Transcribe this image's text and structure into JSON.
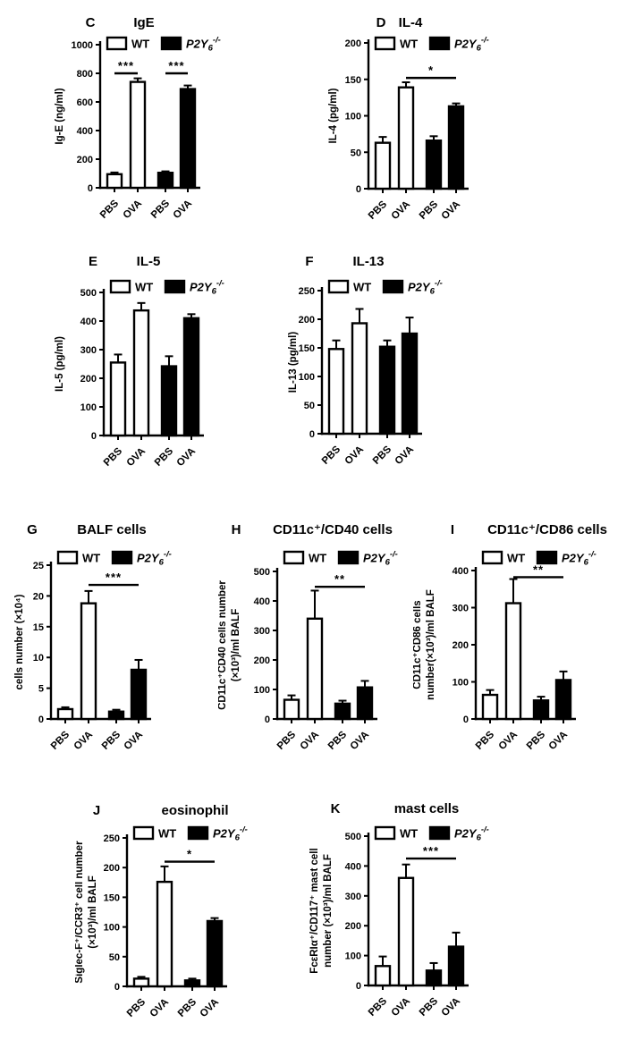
{
  "figure": {
    "background": "#ffffff",
    "ink_color": "#000000",
    "legend": {
      "wt": {
        "label": "WT",
        "swatch_fill": "#ffffff"
      },
      "ko": {
        "label": "P2Y6-/-",
        "base": "P2Y",
        "sub": "6",
        "sup": "-/-",
        "swatch_fill": "#000000"
      }
    }
  },
  "chart_data": [
    {
      "type": "bar",
      "panel_letter": "C",
      "title": "IgE",
      "ylabel_lines": [
        "Ig-E (ng/ml)"
      ],
      "ylim": [
        0,
        1000
      ],
      "ystep": 200,
      "categories": [
        "PBS",
        "OVA",
        "PBS",
        "OVA"
      ],
      "series": [
        {
          "name": "WT",
          "fill": "#ffffff",
          "values": [
            95,
            740
          ],
          "errors": [
            12,
            25
          ]
        },
        {
          "name": "P2Y6-/-",
          "fill": "#000000",
          "values": [
            105,
            690
          ],
          "errors": [
            10,
            25
          ]
        }
      ],
      "significance": [
        {
          "bars": [
            0,
            1
          ],
          "y": 800,
          "label": "***"
        },
        {
          "bars": [
            2,
            3
          ],
          "y": 800,
          "label": "***"
        }
      ]
    },
    {
      "type": "bar",
      "panel_letter": "D",
      "title": "IL-4",
      "ylabel_lines": [
        "IL-4 (pg/ml)"
      ],
      "ylim": [
        0,
        200
      ],
      "ystep": 50,
      "categories": [
        "PBS",
        "OVA",
        "PBS",
        "OVA"
      ],
      "series": [
        {
          "name": "WT",
          "fill": "#ffffff",
          "values": [
            63,
            139
          ],
          "errors": [
            8,
            7
          ]
        },
        {
          "name": "P2Y6-/-",
          "fill": "#000000",
          "values": [
            66,
            113
          ],
          "errors": [
            6,
            4
          ]
        }
      ],
      "significance": [
        {
          "bars": [
            1,
            3
          ],
          "y": 152,
          "label": "*"
        }
      ]
    },
    {
      "type": "bar",
      "panel_letter": "E",
      "title": "IL-5",
      "ylabel_lines": [
        "IL-5 (pg/ml)"
      ],
      "ylim": [
        0,
        500
      ],
      "ystep": 100,
      "categories": [
        "PBS",
        "OVA",
        "PBS",
        "OVA"
      ],
      "series": [
        {
          "name": "WT",
          "fill": "#ffffff",
          "values": [
            255,
            437
          ],
          "errors": [
            28,
            26
          ]
        },
        {
          "name": "P2Y6-/-",
          "fill": "#000000",
          "values": [
            242,
            410
          ],
          "errors": [
            35,
            14
          ]
        }
      ],
      "significance": []
    },
    {
      "type": "bar",
      "panel_letter": "F",
      "title": "IL-13",
      "ylabel_lines": [
        "IL-13 (pg/ml)"
      ],
      "ylim": [
        0,
        250
      ],
      "ystep": 50,
      "categories": [
        "PBS",
        "OVA",
        "PBS",
        "OVA"
      ],
      "series": [
        {
          "name": "WT",
          "fill": "#ffffff",
          "values": [
            148,
            193
          ],
          "errors": [
            15,
            25
          ]
        },
        {
          "name": "P2Y6-/-",
          "fill": "#000000",
          "values": [
            152,
            175
          ],
          "errors": [
            11,
            28
          ]
        }
      ],
      "significance": []
    },
    {
      "type": "bar",
      "panel_letter": "G",
      "title": "BALF cells",
      "ylabel_lines": [
        "cells number (×10⁴)"
      ],
      "ylim": [
        0,
        25
      ],
      "ystep": 5,
      "categories": [
        "PBS",
        "OVA",
        "PBS",
        "OVA"
      ],
      "series": [
        {
          "name": "WT",
          "fill": "#ffffff",
          "values": [
            1.6,
            18.8
          ],
          "errors": [
            0.3,
            2.0
          ]
        },
        {
          "name": "P2Y6-/-",
          "fill": "#000000",
          "values": [
            1.2,
            8.0
          ],
          "errors": [
            0.3,
            1.6
          ]
        }
      ],
      "significance": [
        {
          "bars": [
            1,
            3
          ],
          "y": 21.8,
          "label": "***"
        }
      ]
    },
    {
      "type": "bar",
      "panel_letter": "H",
      "title": "CD11c⁺/CD40 cells",
      "ylabel_lines": [
        "CD11c⁺CD40 cells number",
        "(×10³)/ml BALF"
      ],
      "ylim": [
        0,
        500
      ],
      "ystep": 100,
      "categories": [
        "PBS",
        "OVA",
        "PBS",
        "OVA"
      ],
      "series": [
        {
          "name": "WT",
          "fill": "#ffffff",
          "values": [
            65,
            340
          ],
          "errors": [
            15,
            95
          ]
        },
        {
          "name": "P2Y6-/-",
          "fill": "#000000",
          "values": [
            52,
            107
          ],
          "errors": [
            10,
            22
          ]
        }
      ],
      "significance": [
        {
          "bars": [
            1,
            3
          ],
          "y": 448,
          "label": "**"
        }
      ]
    },
    {
      "type": "bar",
      "panel_letter": "I",
      "title": "CD11c⁺/CD86 cells",
      "ylabel_lines": [
        "CD11c⁺CD86 cells",
        "number(×10³)/ml BALF"
      ],
      "ylim": [
        0,
        400
      ],
      "ystep": 100,
      "categories": [
        "PBS",
        "OVA",
        "PBS",
        "OVA"
      ],
      "series": [
        {
          "name": "WT",
          "fill": "#ffffff",
          "values": [
            65,
            312
          ],
          "errors": [
            13,
            65
          ]
        },
        {
          "name": "P2Y6-/-",
          "fill": "#000000",
          "values": [
            50,
            105
          ],
          "errors": [
            10,
            23
          ]
        }
      ],
      "significance": [
        {
          "bars": [
            1,
            3
          ],
          "y": 382,
          "label": "**"
        }
      ]
    },
    {
      "type": "bar",
      "panel_letter": "J",
      "title": "eosinophil",
      "ylabel_lines": [
        "Siglec-F⁺/CCR3⁺ cell number",
        "(×10³)/ml BALF"
      ],
      "ylim": [
        0,
        250
      ],
      "ystep": 50,
      "categories": [
        "PBS",
        "OVA",
        "PBS",
        "OVA"
      ],
      "series": [
        {
          "name": "WT",
          "fill": "#ffffff",
          "values": [
            13,
            176
          ],
          "errors": [
            3,
            26
          ]
        },
        {
          "name": "P2Y6-/-",
          "fill": "#000000",
          "values": [
            10,
            110
          ],
          "errors": [
            3,
            5
          ]
        }
      ],
      "significance": [
        {
          "bars": [
            1,
            3
          ],
          "y": 210,
          "label": "*"
        }
      ]
    },
    {
      "type": "bar",
      "panel_letter": "K",
      "title": "mast cells",
      "ylabel_lines": [
        "FcεRIα⁺/CD117⁺ mast cell",
        "number (×10³)/ml BALF"
      ],
      "ylim": [
        0,
        500
      ],
      "ystep": 100,
      "categories": [
        "PBS",
        "OVA",
        "PBS",
        "OVA"
      ],
      "series": [
        {
          "name": "WT",
          "fill": "#ffffff",
          "values": [
            65,
            360
          ],
          "errors": [
            32,
            45
          ]
        },
        {
          "name": "P2Y6-/-",
          "fill": "#000000",
          "values": [
            50,
            130
          ],
          "errors": [
            25,
            47
          ]
        }
      ],
      "significance": [
        {
          "bars": [
            1,
            3
          ],
          "y": 425,
          "label": "***"
        }
      ]
    }
  ]
}
